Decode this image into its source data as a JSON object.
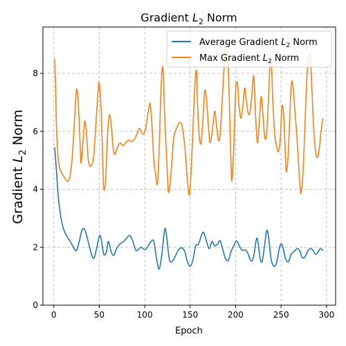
{
  "chart_data": {
    "type": "line",
    "title": "Gradient L₂ Norm",
    "title_parts": {
      "prefix": "Gradient ",
      "symbol": "L",
      "subscript": "2",
      "suffix": " Norm"
    },
    "xlabel": "Epoch",
    "ylabel": "Gradient L₂ Norm",
    "ylabel_parts": {
      "prefix": "Gradient ",
      "symbol": "L",
      "subscript": "2",
      "suffix": " Norm"
    },
    "xlim": [
      -12,
      310
    ],
    "ylim": [
      0,
      9.6
    ],
    "xticks": [
      0,
      50,
      100,
      150,
      200,
      250,
      300
    ],
    "yticks": [
      0,
      2,
      4,
      6,
      8
    ],
    "grid": true,
    "legend_position": "top-right",
    "series": [
      {
        "name": "Average Gradient L₂ Norm",
        "name_parts": {
          "prefix": "Average Gradient ",
          "symbol": "L",
          "subscript": "2",
          "suffix": " Norm"
        },
        "color": "#1f77b4",
        "points": [
          [
            1,
            5.45
          ],
          [
            3,
            4.6
          ],
          [
            5,
            3.7
          ],
          [
            8,
            3.0
          ],
          [
            11,
            2.6
          ],
          [
            15,
            2.35
          ],
          [
            19,
            2.15
          ],
          [
            23,
            1.92
          ],
          [
            25,
            1.9
          ],
          [
            28,
            2.2
          ],
          [
            31,
            2.6
          ],
          [
            34,
            2.6
          ],
          [
            37,
            2.3
          ],
          [
            41,
            1.8
          ],
          [
            44,
            1.62
          ],
          [
            47,
            1.95
          ],
          [
            50,
            2.38
          ],
          [
            52,
            2.3
          ],
          [
            55,
            1.75
          ],
          [
            58,
            1.85
          ],
          [
            60,
            2.2
          ],
          [
            63,
            1.85
          ],
          [
            66,
            1.72
          ],
          [
            69,
            1.95
          ],
          [
            73,
            2.12
          ],
          [
            77,
            2.2
          ],
          [
            81,
            2.35
          ],
          [
            84,
            2.4
          ],
          [
            87,
            2.2
          ],
          [
            90,
            1.9
          ],
          [
            93,
            1.92
          ],
          [
            96,
            2.0
          ],
          [
            100,
            1.92
          ],
          [
            103,
            2.0
          ],
          [
            107,
            2.2
          ],
          [
            110,
            2.2
          ],
          [
            113,
            1.6
          ],
          [
            116,
            1.25
          ],
          [
            119,
            1.8
          ],
          [
            122,
            2.62
          ],
          [
            124,
            2.4
          ],
          [
            127,
            1.6
          ],
          [
            130,
            1.5
          ],
          [
            133,
            1.65
          ],
          [
            137,
            1.9
          ],
          [
            141,
            1.98
          ],
          [
            144,
            1.85
          ],
          [
            147,
            1.5
          ],
          [
            150,
            1.35
          ],
          [
            153,
            1.55
          ],
          [
            156,
            2.05
          ],
          [
            159,
            2.1
          ],
          [
            163,
            2.45
          ],
          [
            165,
            2.5
          ],
          [
            168,
            2.2
          ],
          [
            171,
            1.95
          ],
          [
            174,
            2.2
          ],
          [
            177,
            2.05
          ],
          [
            180,
            2.1
          ],
          [
            183,
            2.22
          ],
          [
            186,
            1.9
          ],
          [
            189,
            1.6
          ],
          [
            192,
            1.55
          ],
          [
            195,
            1.85
          ],
          [
            198,
            2.05
          ],
          [
            201,
            2.22
          ],
          [
            204,
            2.05
          ],
          [
            207,
            1.9
          ],
          [
            211,
            1.9
          ],
          [
            214,
            1.75
          ],
          [
            217,
            1.52
          ],
          [
            220,
            1.7
          ],
          [
            223,
            2.3
          ],
          [
            225,
            2.1
          ],
          [
            227,
            1.6
          ],
          [
            229,
            1.5
          ],
          [
            231,
            1.85
          ],
          [
            234,
            2.55
          ],
          [
            236,
            2.4
          ],
          [
            239,
            1.6
          ],
          [
            242,
            1.35
          ],
          [
            245,
            1.45
          ],
          [
            248,
            1.95
          ],
          [
            250,
            2.12
          ],
          [
            252,
            2.0
          ],
          [
            255,
            1.6
          ],
          [
            258,
            1.5
          ],
          [
            261,
            1.75
          ],
          [
            264,
            1.85
          ],
          [
            268,
            1.95
          ],
          [
            271,
            1.85
          ],
          [
            273,
            1.65
          ],
          [
            276,
            1.65
          ],
          [
            279,
            1.85
          ],
          [
            282,
            1.95
          ],
          [
            285,
            1.9
          ],
          [
            288,
            1.75
          ],
          [
            291,
            1.85
          ],
          [
            293,
            1.95
          ],
          [
            295,
            1.92
          ],
          [
            296,
            1.88
          ]
        ]
      },
      {
        "name": "Max Gradient L₂ Norm",
        "name_parts": {
          "prefix": "Max Gradient ",
          "symbol": "L",
          "subscript": "2",
          "suffix": " Norm"
        },
        "color": "#ff7f0e",
        "points": [
          [
            1,
            8.5
          ],
          [
            2,
            7.5
          ],
          [
            3,
            6.1
          ],
          [
            5,
            5.0
          ],
          [
            8,
            4.6
          ],
          [
            11,
            4.45
          ],
          [
            14,
            4.3
          ],
          [
            17,
            4.35
          ],
          [
            20,
            5.0
          ],
          [
            23,
            6.5
          ],
          [
            25,
            7.45
          ],
          [
            27,
            6.9
          ],
          [
            29,
            5.5
          ],
          [
            30,
            4.9
          ],
          [
            32,
            5.6
          ],
          [
            34,
            6.35
          ],
          [
            36,
            5.9
          ],
          [
            38,
            5.0
          ],
          [
            41,
            4.8
          ],
          [
            44,
            5.2
          ],
          [
            47,
            6.6
          ],
          [
            49,
            7.5
          ],
          [
            50,
            7.65
          ],
          [
            52,
            6.8
          ],
          [
            54,
            4.8
          ],
          [
            55,
            4.0
          ],
          [
            57,
            4.3
          ],
          [
            59,
            5.8
          ],
          [
            61,
            6.55
          ],
          [
            63,
            6.3
          ],
          [
            65,
            5.5
          ],
          [
            67,
            5.2
          ],
          [
            70,
            5.45
          ],
          [
            73,
            5.6
          ],
          [
            76,
            5.5
          ],
          [
            79,
            5.6
          ],
          [
            82,
            5.7
          ],
          [
            86,
            5.65
          ],
          [
            90,
            5.8
          ],
          [
            94,
            6.1
          ],
          [
            98,
            5.9
          ],
          [
            101,
            6.1
          ],
          [
            104,
            6.7
          ],
          [
            106,
            6.95
          ],
          [
            108,
            6.2
          ],
          [
            110,
            5.0
          ],
          [
            112,
            4.5
          ],
          [
            114,
            4.2
          ],
          [
            116,
            5.5
          ],
          [
            118,
            7.5
          ],
          [
            120,
            8.2
          ],
          [
            122,
            6.5
          ],
          [
            125,
            4.5
          ],
          [
            126,
            3.9
          ],
          [
            128,
            4.2
          ],
          [
            130,
            5.0
          ],
          [
            132,
            5.8
          ],
          [
            135,
            6.1
          ],
          [
            138,
            6.3
          ],
          [
            141,
            6.2
          ],
          [
            144,
            5.5
          ],
          [
            147,
            4.3
          ],
          [
            149,
            3.8
          ],
          [
            151,
            4.6
          ],
          [
            153,
            6.0
          ],
          [
            155,
            7.5
          ],
          [
            157,
            8.1
          ],
          [
            158,
            7.0
          ],
          [
            160,
            5.8
          ],
          [
            162,
            5.6
          ],
          [
            164,
            6.4
          ],
          [
            166,
            7.4
          ],
          [
            168,
            7.1
          ],
          [
            170,
            6.2
          ],
          [
            172,
            5.6
          ],
          [
            175,
            6.2
          ],
          [
            177,
            6.7
          ],
          [
            179,
            6.2
          ],
          [
            181,
            5.7
          ],
          [
            183,
            5.9
          ],
          [
            186,
            7.5
          ],
          [
            188,
            8.5
          ],
          [
            190,
            9.1
          ],
          [
            192,
            8.2
          ],
          [
            194,
            5.9
          ],
          [
            195,
            4.8
          ],
          [
            196,
            4.3
          ],
          [
            198,
            5.5
          ],
          [
            200,
            7.4
          ],
          [
            202,
            7.65
          ],
          [
            204,
            6.8
          ],
          [
            206,
            6.45
          ],
          [
            208,
            6.9
          ],
          [
            210,
            7.5
          ],
          [
            212,
            7.0
          ],
          [
            214,
            6.6
          ],
          [
            216,
            6.7
          ],
          [
            218,
            7.3
          ],
          [
            220,
            7.9
          ],
          [
            222,
            6.5
          ],
          [
            224,
            5.6
          ],
          [
            226,
            6.3
          ],
          [
            228,
            7.2
          ],
          [
            230,
            6.6
          ],
          [
            232,
            5.8
          ],
          [
            234,
            5.9
          ],
          [
            236,
            7.0
          ],
          [
            238,
            8.5
          ],
          [
            239,
            8.6
          ],
          [
            241,
            7.0
          ],
          [
            243,
            5.9
          ],
          [
            245,
            5.5
          ],
          [
            247,
            5.3
          ],
          [
            249,
            5.7
          ],
          [
            251,
            6.85
          ],
          [
            253,
            6.5
          ],
          [
            255,
            5.0
          ],
          [
            256,
            4.6
          ],
          [
            258,
            5.3
          ],
          [
            261,
            7.5
          ],
          [
            263,
            7.6
          ],
          [
            265,
            6.8
          ],
          [
            267,
            6.0
          ],
          [
            269,
            5.0
          ],
          [
            271,
            4.0
          ],
          [
            272,
            3.9
          ],
          [
            274,
            4.5
          ],
          [
            276,
            6.0
          ],
          [
            278,
            7.6
          ],
          [
            280,
            8.5
          ],
          [
            282,
            8.6
          ],
          [
            284,
            7.4
          ],
          [
            286,
            6.0
          ],
          [
            288,
            5.3
          ],
          [
            290,
            5.1
          ],
          [
            292,
            5.4
          ],
          [
            294,
            6.0
          ],
          [
            296,
            6.45
          ]
        ]
      }
    ]
  }
}
